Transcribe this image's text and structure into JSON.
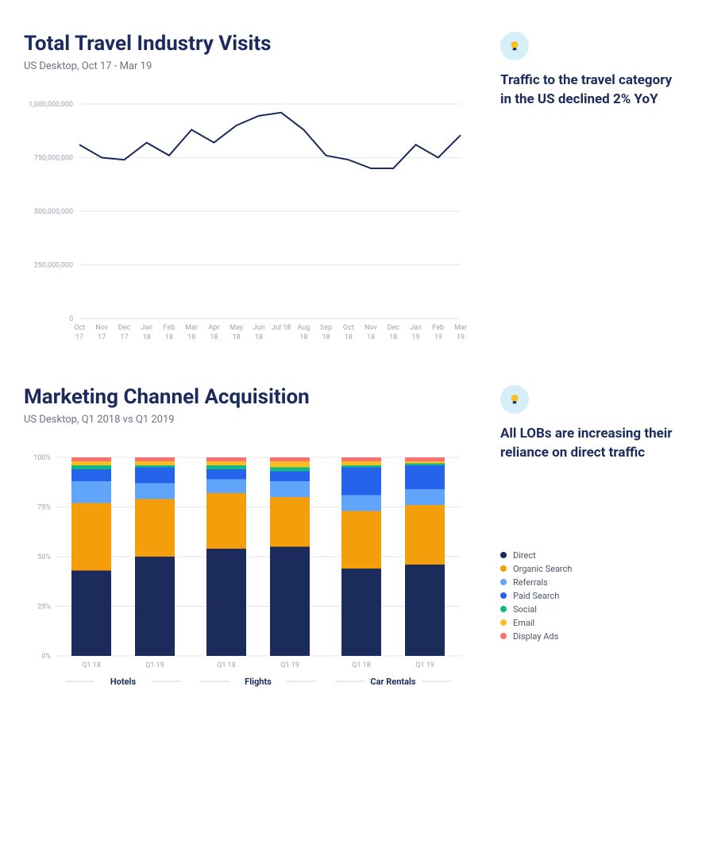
{
  "chart1": {
    "title": "Total Travel Industry Visits",
    "subtitle": "US Desktop, Oct 17 - Mar 19",
    "type": "line",
    "line_color": "#1a2b5c",
    "line_width": 2,
    "grid_color": "#e5e7eb",
    "axis_text_color": "#9ca3af",
    "axis_fontsize": 9,
    "y_ticks": [
      0,
      250000000,
      500000000,
      750000000,
      1000000000
    ],
    "y_tick_labels": [
      "0",
      "250,000,000",
      "500,000,000",
      "750,000,000",
      "1,000,000,000"
    ],
    "x_labels_top": [
      "Oct",
      "Nov",
      "Dec",
      "Jan",
      "Feb",
      "Mar",
      "Apr",
      "May",
      "Jun",
      "Jul 18",
      "Aug",
      "Sep",
      "Oct",
      "Nov",
      "Dec",
      "Jan",
      "Feb",
      "Mar"
    ],
    "x_labels_bot": [
      "17",
      "17",
      "17",
      "18",
      "18",
      "18",
      "18",
      "18",
      "18",
      "",
      "18",
      "18",
      "18",
      "18",
      "18",
      "19",
      "19",
      "19"
    ],
    "values": [
      810000000,
      750000000,
      740000000,
      820000000,
      760000000,
      880000000,
      820000000,
      900000000,
      945000000,
      960000000,
      880000000,
      760000000,
      740000000,
      700000000,
      700000000,
      810000000,
      750000000,
      855000000
    ],
    "insight": "Traffic to the travel category in the US declined 2% YoY"
  },
  "chart2": {
    "title": "Marketing Channel Acquisition",
    "subtitle": "US Desktop, Q1 2018 vs Q1 2019",
    "type": "stacked_bar_100",
    "grid_color": "#e5e7eb",
    "axis_text_color": "#9ca3af",
    "axis_fontsize": 9,
    "y_ticks": [
      0,
      25,
      50,
      75,
      100
    ],
    "y_tick_labels": [
      "0%",
      "25%",
      "50%",
      "75%",
      "100%"
    ],
    "groups": [
      "Hotels",
      "Flights",
      "Car Rentals"
    ],
    "bar_labels": [
      "Q1 18",
      "Q1 19",
      "Q1 18",
      "Q1 19",
      "Q1 18",
      "Q1 19"
    ],
    "series": [
      {
        "name": "Direct",
        "color": "#1a2b5c",
        "values": [
          43,
          50,
          54,
          55,
          44,
          46
        ]
      },
      {
        "name": "Organic Search",
        "color": "#f59e0b",
        "values": [
          34,
          29,
          28,
          25,
          29,
          30
        ]
      },
      {
        "name": "Referrals",
        "color": "#60a5fa",
        "values": [
          11,
          8,
          7,
          8,
          8,
          8
        ]
      },
      {
        "name": "Paid Search",
        "color": "#2563eb",
        "values": [
          6,
          8,
          5,
          5,
          14,
          12
        ]
      },
      {
        "name": "Social",
        "color": "#10b981",
        "values": [
          2,
          1,
          2,
          2,
          1,
          1
        ]
      },
      {
        "name": "Email",
        "color": "#fbbf24",
        "values": [
          2,
          2,
          2,
          3,
          2,
          1
        ]
      },
      {
        "name": "Display Ads",
        "color": "#f87171",
        "values": [
          2,
          2,
          2,
          2,
          2,
          2
        ]
      }
    ],
    "insight": "All LOBs are increasing their reliance on direct traffic"
  }
}
